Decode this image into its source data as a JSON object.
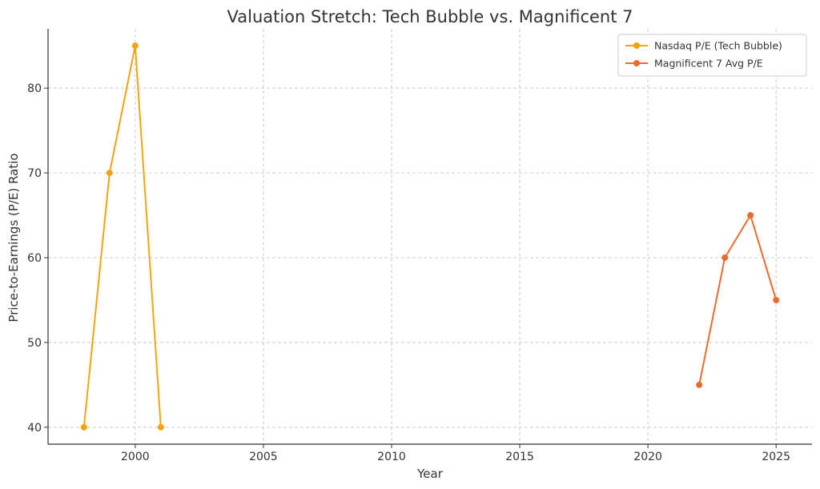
{
  "chart_data": {
    "type": "line",
    "title": "Valuation Stretch: Tech Bubble vs. Magnificent 7",
    "xlabel": "Year",
    "ylabel": "Price-to-Earnings (P/E) Ratio",
    "xlim": [
      1996.6,
      2026.4
    ],
    "ylim": [
      38.0,
      87.0
    ],
    "xticks": [
      2000,
      2005,
      2010,
      2015,
      2020,
      2025
    ],
    "yticks": [
      40,
      50,
      60,
      70,
      80
    ],
    "grid": true,
    "legend_position": "top-right",
    "series": [
      {
        "name": "Nasdaq P/E (Tech Bubble)",
        "color": "#f5a30f",
        "x": [
          1998,
          1999,
          2000,
          2001
        ],
        "y": [
          40,
          70,
          85,
          40
        ]
      },
      {
        "name": "Magnificent 7 Avg P/E",
        "color": "#ed6a2f",
        "x": [
          2022,
          2023,
          2024,
          2025
        ],
        "y": [
          45,
          60,
          65,
          55
        ]
      }
    ]
  }
}
